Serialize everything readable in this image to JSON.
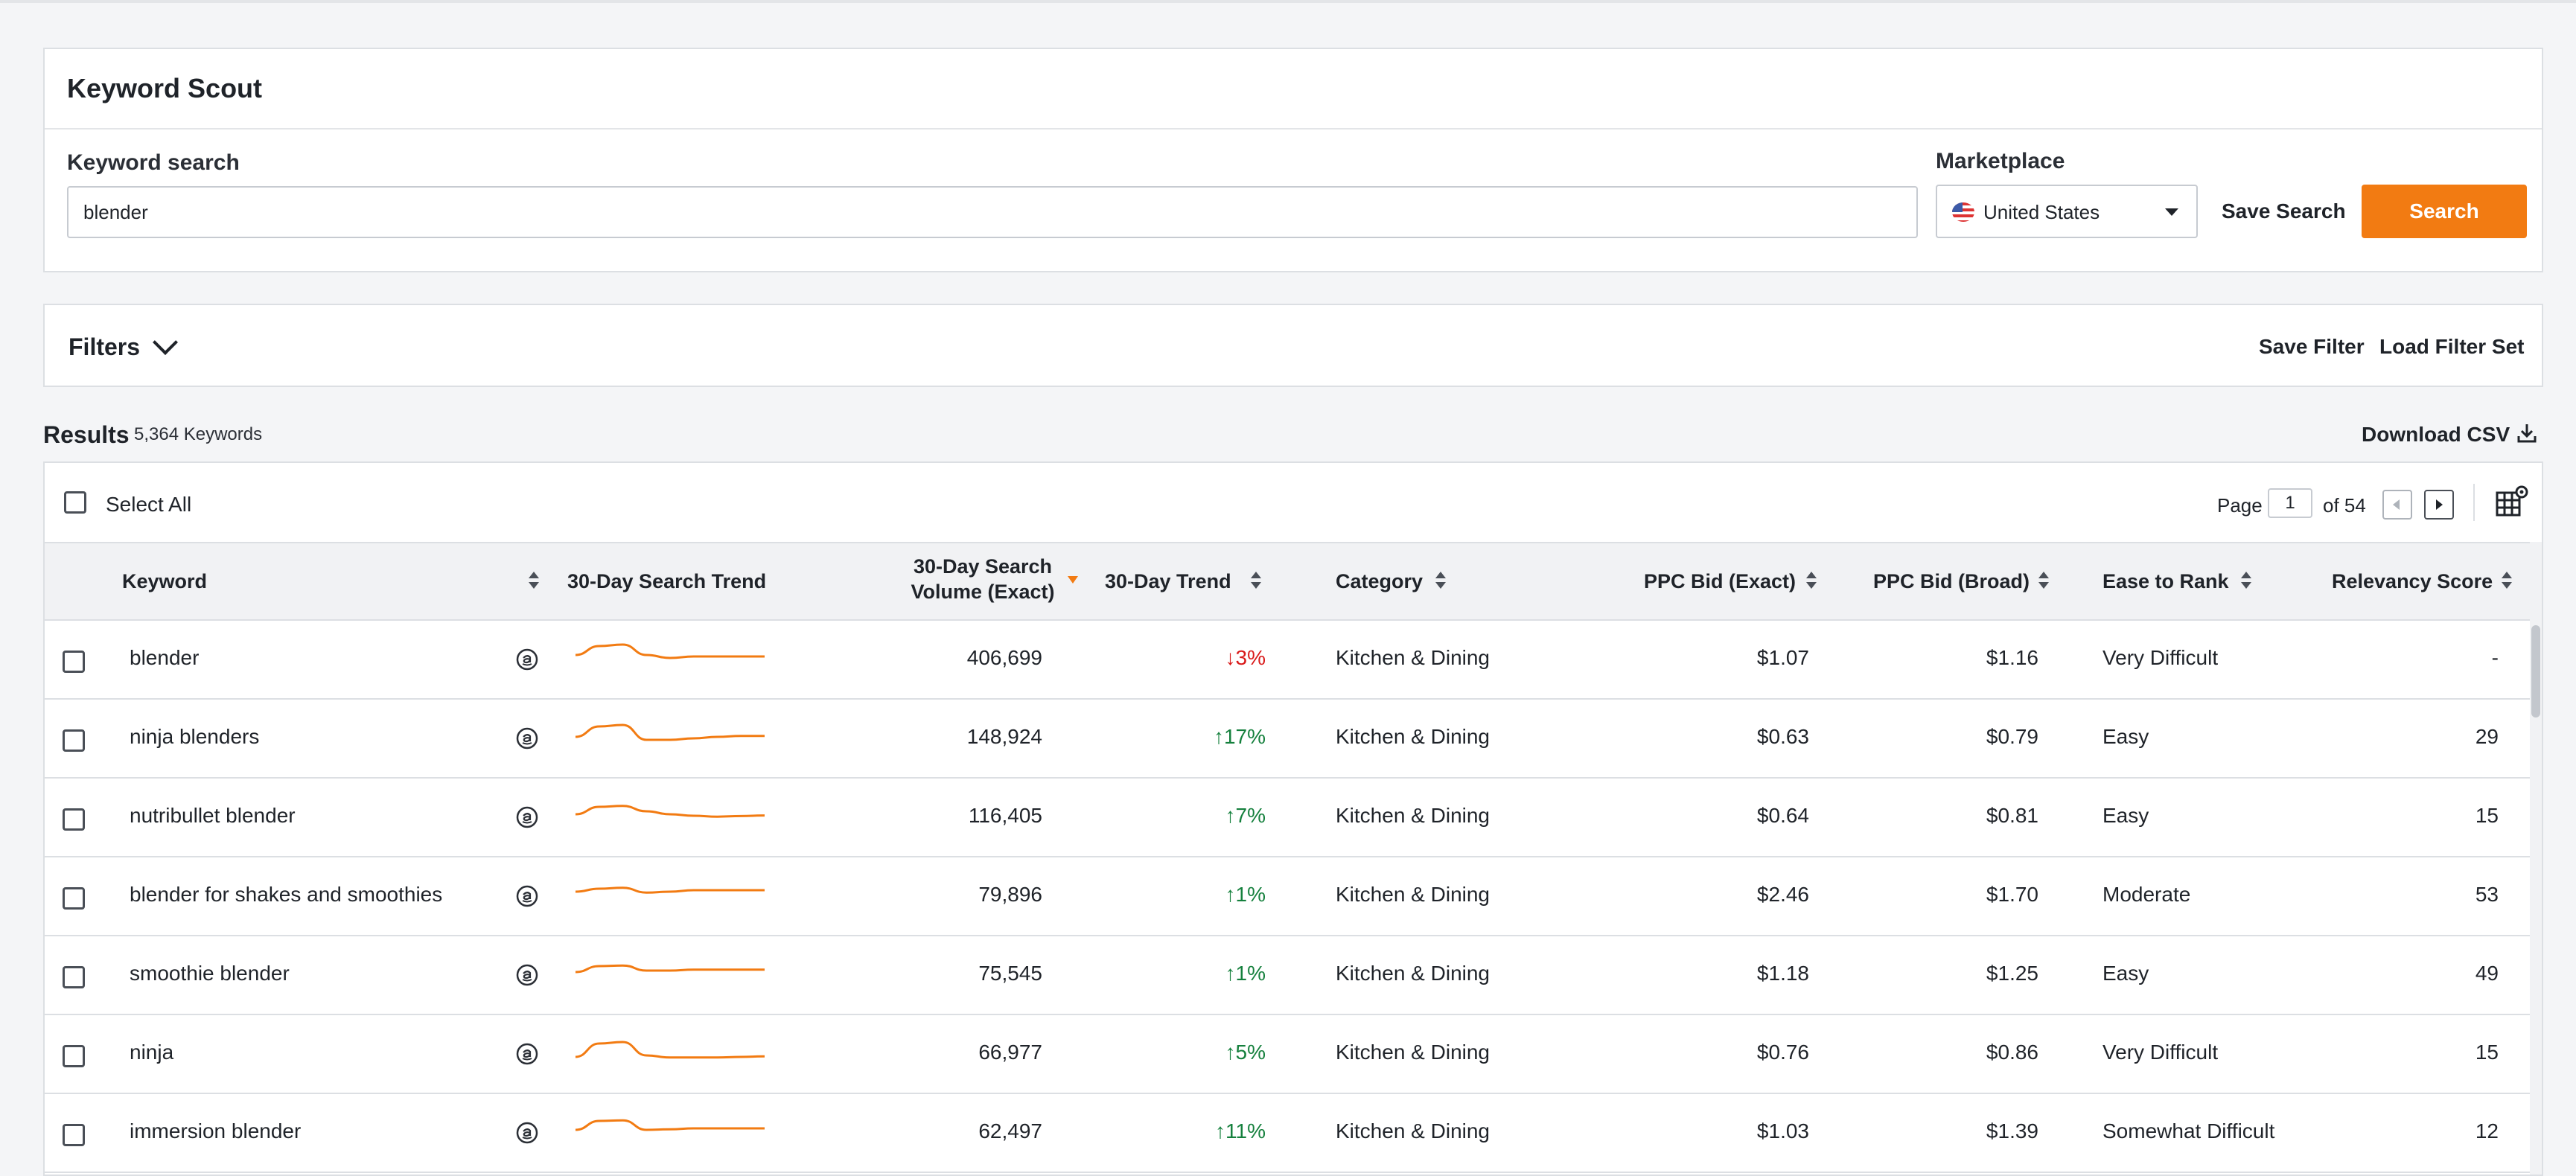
{
  "app": {
    "title": "Keyword Scout"
  },
  "search": {
    "label": "Keyword search",
    "value": "blender",
    "marketplace_label": "Marketplace",
    "marketplace_value": "United States",
    "save_search_label": "Save Search",
    "search_button_label": "Search"
  },
  "filters": {
    "label": "Filters",
    "save_filter_label": "Save Filter",
    "load_filter_set_label": "Load Filter Set"
  },
  "results": {
    "title": "Results",
    "count": "5,364 Keywords",
    "download_label": "Download CSV",
    "select_all_label": "Select All",
    "page_label": "Page",
    "page_value": "1",
    "page_of": "of 54"
  },
  "table": {
    "columns": {
      "keyword": "Keyword",
      "search_trend": "30-Day Search Trend",
      "volume_line1": "30-Day Search",
      "volume_line2": "Volume (Exact)",
      "trend": "30-Day Trend",
      "category": "Category",
      "ppc_exact": "PPC Bid (Exact)",
      "ppc_broad": "PPC Bid (Broad)",
      "ease": "Ease to Rank",
      "relevancy": "Relevancy Score"
    },
    "rows": [
      {
        "keyword": "blender",
        "volume": "406,699",
        "trend": "3%",
        "direction": "down",
        "category": "Kitchen & Dining",
        "ppc_exact": "$1.07",
        "ppc_broad": "$1.16",
        "ease": "Very Difficult",
        "relevancy": "-",
        "spark": [
          0.55,
          0.85,
          0.9,
          0.55,
          0.45,
          0.5,
          0.5,
          0.5,
          0.5
        ]
      },
      {
        "keyword": "ninja blenders",
        "volume": "148,924",
        "trend": "17%",
        "direction": "up",
        "category": "Kitchen & Dining",
        "ppc_exact": "$0.63",
        "ppc_broad": "$0.79",
        "ease": "Easy",
        "relevancy": "29",
        "spark": [
          0.45,
          0.8,
          0.85,
          0.35,
          0.35,
          0.4,
          0.45,
          0.48,
          0.48
        ]
      },
      {
        "keyword": "nutribullet blender",
        "volume": "116,405",
        "trend": "7%",
        "direction": "up",
        "category": "Kitchen & Dining",
        "ppc_exact": "$0.64",
        "ppc_broad": "$0.81",
        "ease": "Easy",
        "relevancy": "15",
        "spark": [
          0.5,
          0.75,
          0.78,
          0.6,
          0.5,
          0.45,
          0.42,
          0.44,
          0.46
        ]
      },
      {
        "keyword": "blender for shakes and smoothies",
        "volume": "79,896",
        "trend": "1%",
        "direction": "up",
        "category": "Kitchen & Dining",
        "ppc_exact": "$2.46",
        "ppc_broad": "$1.70",
        "ease": "Moderate",
        "relevancy": "53",
        "spark": [
          0.55,
          0.65,
          0.68,
          0.52,
          0.55,
          0.6,
          0.6,
          0.6,
          0.6
        ]
      },
      {
        "keyword": "smoothie blender",
        "volume": "75,545",
        "trend": "1%",
        "direction": "up",
        "category": "Kitchen & Dining",
        "ppc_exact": "$1.18",
        "ppc_broad": "$1.25",
        "ease": "Easy",
        "relevancy": "49",
        "spark": [
          0.5,
          0.7,
          0.72,
          0.55,
          0.55,
          0.58,
          0.58,
          0.58,
          0.58
        ]
      },
      {
        "keyword": "ninja",
        "volume": "66,977",
        "trend": "5%",
        "direction": "up",
        "category": "Kitchen & Dining",
        "ppc_exact": "$0.76",
        "ppc_broad": "$0.86",
        "ease": "Very Difficult",
        "relevancy": "15",
        "spark": [
          0.3,
          0.75,
          0.8,
          0.35,
          0.28,
          0.28,
          0.28,
          0.3,
          0.32
        ]
      },
      {
        "keyword": "immersion blender",
        "volume": "62,497",
        "trend": "11%",
        "direction": "up",
        "category": "Kitchen & Dining",
        "ppc_exact": "$1.03",
        "ppc_broad": "$1.39",
        "ease": "Somewhat Difficult",
        "relevancy": "12",
        "spark": [
          0.5,
          0.8,
          0.82,
          0.5,
          0.52,
          0.55,
          0.55,
          0.55,
          0.55
        ]
      }
    ]
  },
  "colors": {
    "accent": "#f27b12",
    "trend_up": "#15803d",
    "trend_down": "#d91a1a",
    "spark": "#f27b12"
  },
  "icons": {
    "amazon": "amazon-icon",
    "download": "download-icon",
    "column_settings": "column-settings-icon",
    "flag": "us-flag-icon"
  }
}
